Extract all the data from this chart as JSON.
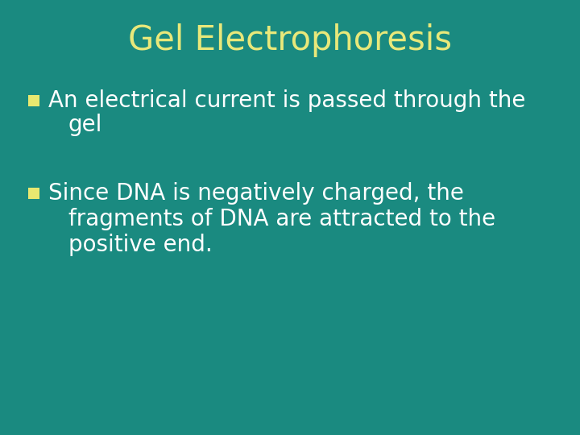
{
  "title": "Gel Electrophoresis",
  "title_color": "#e8e87a",
  "title_fontsize": 30,
  "background_color": "#1a8a80",
  "bullet_color": "#ffffff",
  "bullet_marker_color": "#e8e870",
  "bullet1_line1": "An electrical current is passed through the",
  "bullet1_line2": "gel",
  "bullet2_line1": "Since DNA is negatively charged, the",
  "bullet2_line2": "fragments of DNA are attracted to the",
  "bullet2_line3": "positive end.",
  "bullet_fontsize": 20,
  "marker_size": 10
}
